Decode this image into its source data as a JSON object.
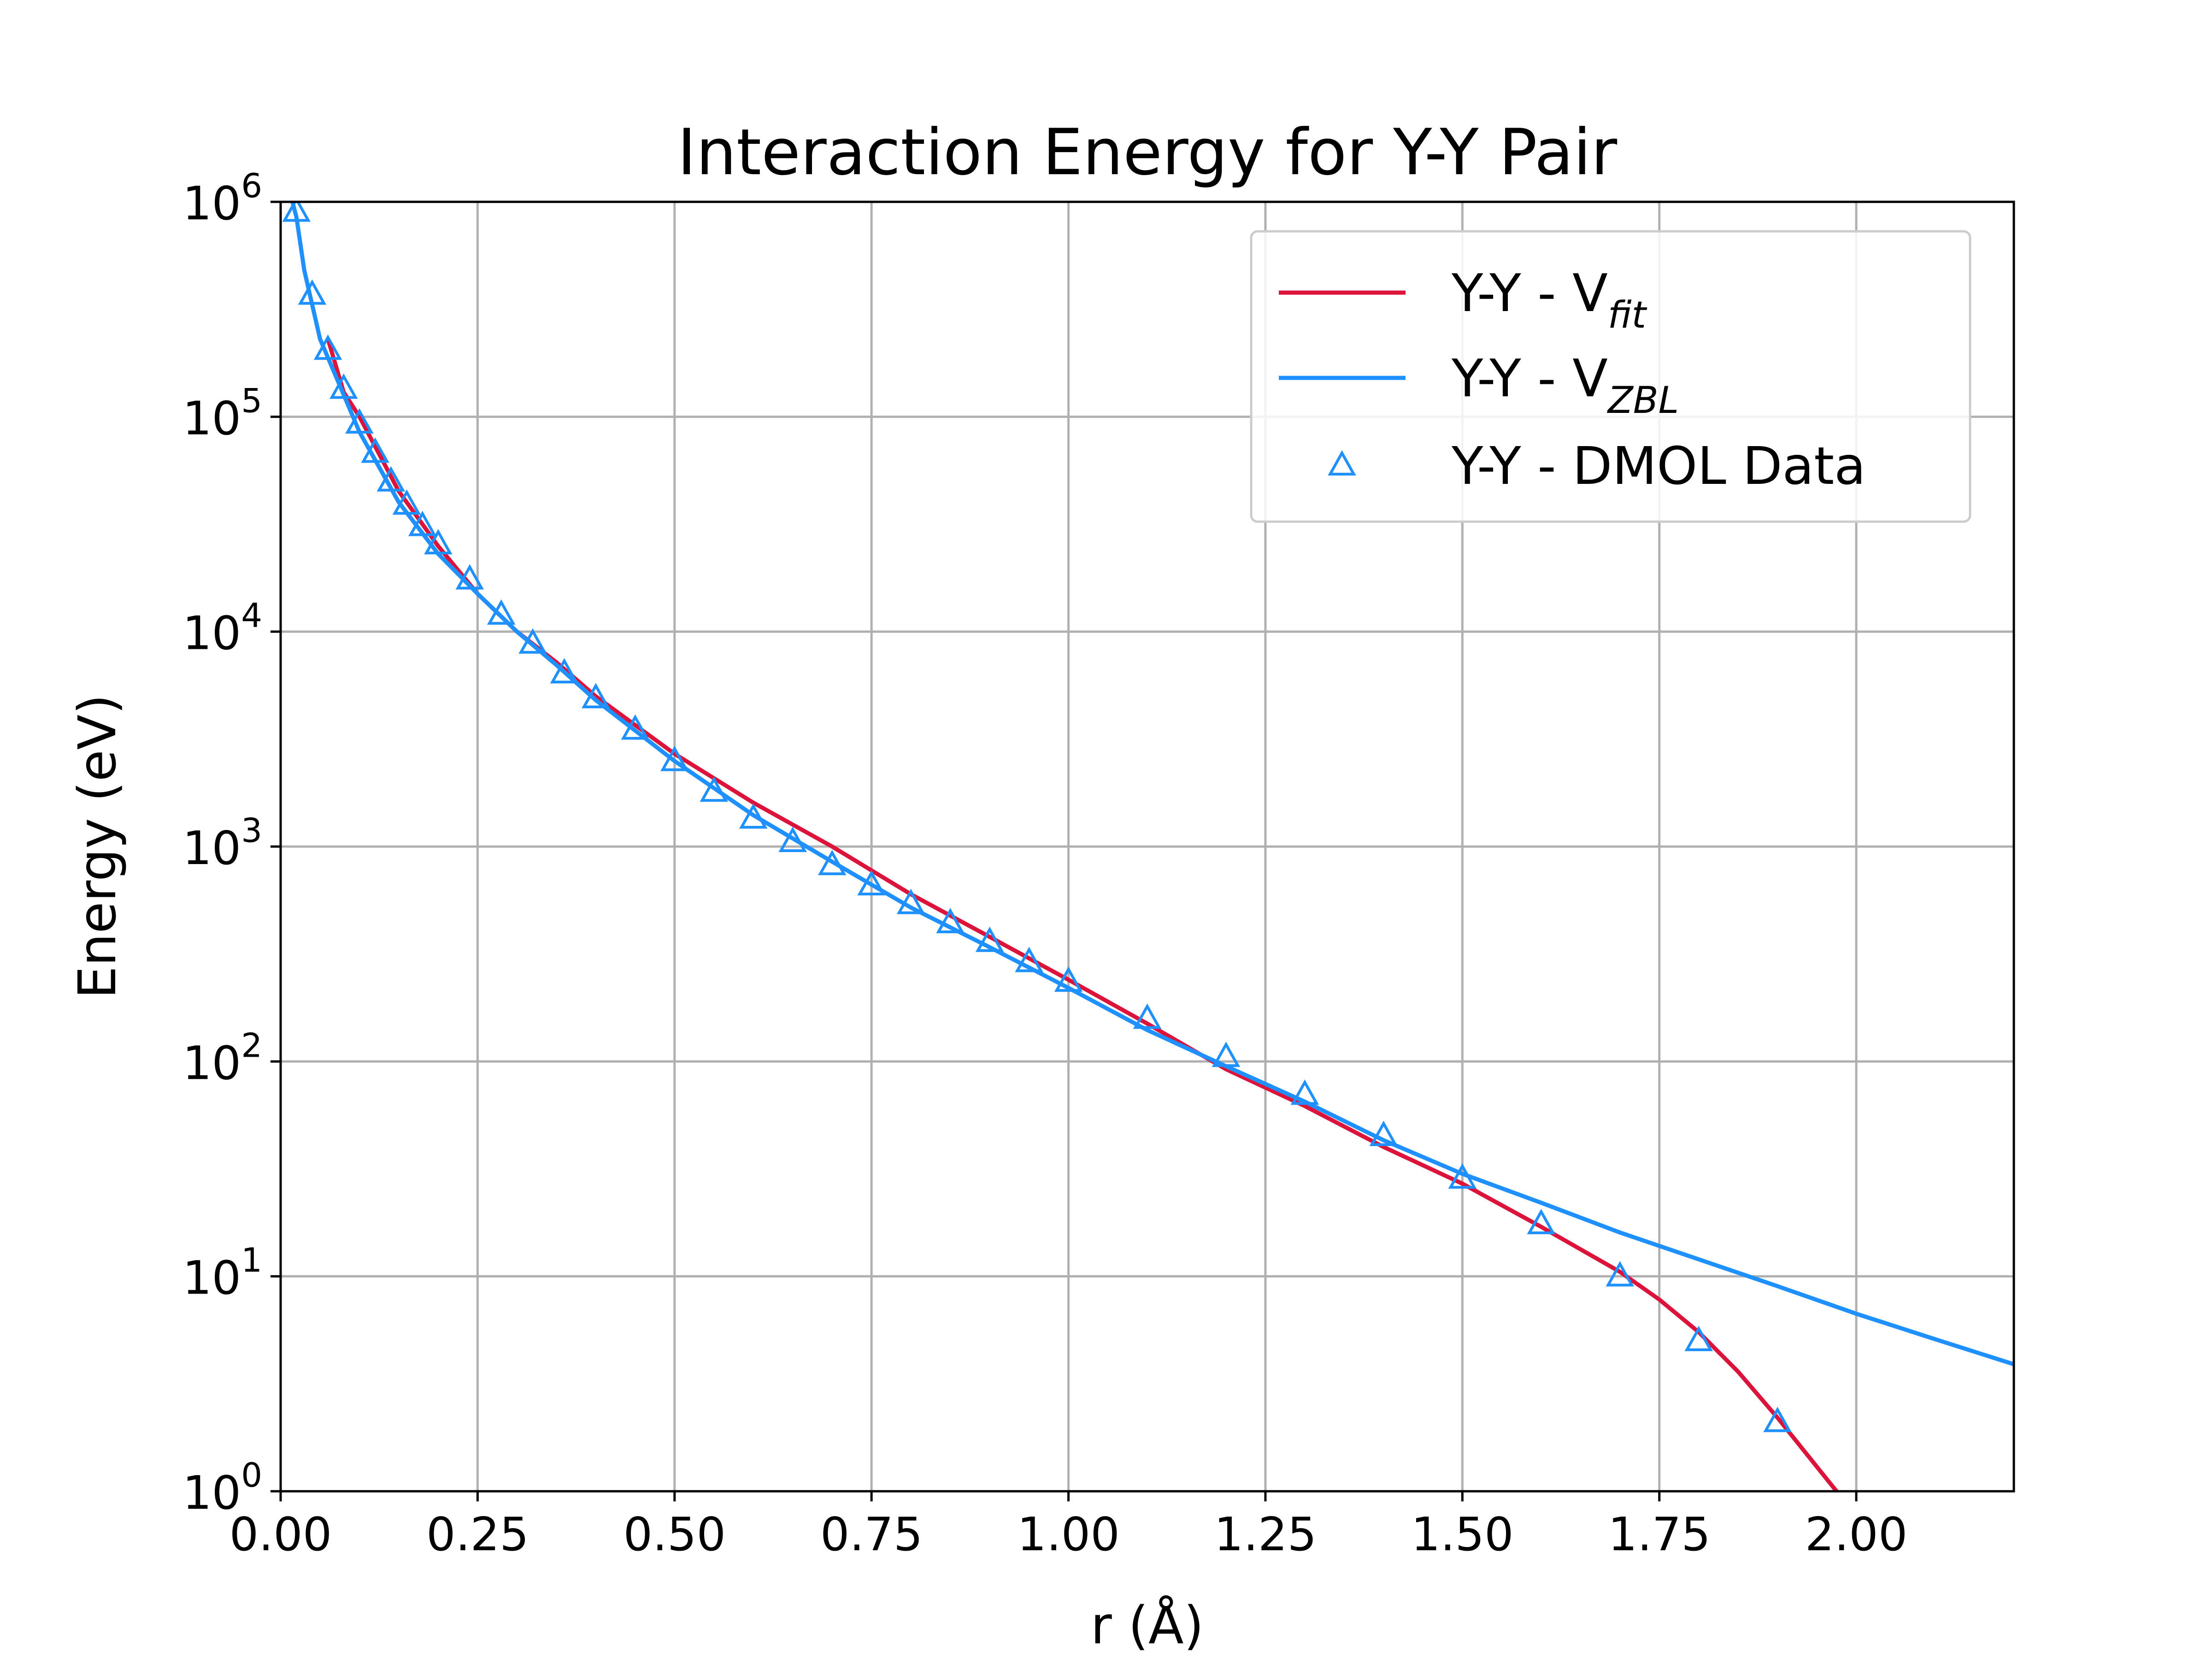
{
  "chart_data": {
    "type": "line",
    "title": "Interaction Energy for Y-Y Pair",
    "xlabel": "r (Å)",
    "ylabel": "Energy (eV)",
    "xlim": [
      0.0,
      2.2
    ],
    "ylim": [
      1,
      1000000
    ],
    "yscale": "log",
    "grid": true,
    "legend_position": "top-right",
    "xticks": [
      "0.00",
      "0.25",
      "0.50",
      "0.75",
      "1.00",
      "1.25",
      "1.50",
      "1.75",
      "2.00"
    ],
    "yticks": [
      {
        "base": "10",
        "exp": "0"
      },
      {
        "base": "10",
        "exp": "1"
      },
      {
        "base": "10",
        "exp": "2"
      },
      {
        "base": "10",
        "exp": "3"
      },
      {
        "base": "10",
        "exp": "4"
      },
      {
        "base": "10",
        "exp": "5"
      },
      {
        "base": "10",
        "exp": "6"
      }
    ],
    "series": [
      {
        "name": "Y-Y - V",
        "subscript": "fit",
        "color": "#dc143c",
        "style": "line",
        "x": [
          0.06,
          0.08,
          0.1,
          0.15,
          0.2,
          0.25,
          0.3,
          0.35,
          0.4,
          0.5,
          0.6,
          0.7,
          0.8,
          0.9,
          1.0,
          1.1,
          1.2,
          1.3,
          1.4,
          1.5,
          1.6,
          1.7,
          1.75,
          1.8,
          1.85,
          1.9,
          1.95,
          1.985
        ],
        "y": [
          230000,
          130000,
          100000,
          45000,
          25000,
          15000,
          10000,
          7200,
          5000,
          2700,
          1600,
          1000,
          600,
          380,
          240,
          150,
          92,
          62,
          40,
          27,
          17,
          10.5,
          7.8,
          5.5,
          3.6,
          2.2,
          1.3,
          0.9
        ]
      },
      {
        "name": "Y-Y - V",
        "subscript": "ZBL",
        "color": "#1e90ff",
        "style": "line",
        "x": [
          0.015,
          0.02,
          0.03,
          0.05,
          0.075,
          0.1,
          0.15,
          0.2,
          0.25,
          0.3,
          0.35,
          0.4,
          0.5,
          0.6,
          0.7,
          0.8,
          0.9,
          1.0,
          1.1,
          1.2,
          1.3,
          1.4,
          1.5,
          1.6,
          1.7,
          1.8,
          1.9,
          2.0,
          2.1,
          2.2
        ],
        "y": [
          1000000,
          850000,
          480000,
          230000,
          140000,
          85000,
          40000,
          23000,
          15000,
          10000,
          7000,
          4800,
          2500,
          1400,
          850,
          520,
          340,
          220,
          140,
          95,
          65,
          43,
          30,
          22,
          16,
          12,
          9,
          6.7,
          5.1,
          3.9
        ]
      },
      {
        "name": "Y-Y - DMOL Data",
        "color": "#1e90ff",
        "style": "triangle-markers",
        "x": [
          0.02,
          0.04,
          0.06,
          0.08,
          0.1,
          0.12,
          0.14,
          0.16,
          0.18,
          0.2,
          0.24,
          0.28,
          0.32,
          0.36,
          0.4,
          0.45,
          0.5,
          0.55,
          0.6,
          0.65,
          0.7,
          0.75,
          0.8,
          0.85,
          0.9,
          0.95,
          1.0,
          1.1,
          1.2,
          1.3,
          1.4,
          1.5,
          1.6,
          1.7,
          1.8,
          1.9
        ],
        "y": [
          900000,
          370000,
          205000,
          135000,
          93000,
          68000,
          50000,
          39000,
          31000,
          25500,
          17500,
          12000,
          8800,
          6400,
          4900,
          3500,
          2500,
          1800,
          1350,
          1050,
          820,
          660,
          540,
          440,
          360,
          290,
          235,
          158,
          105,
          70,
          45,
          28.5,
          17.5,
          10,
          5,
          2.1
        ]
      }
    ]
  }
}
